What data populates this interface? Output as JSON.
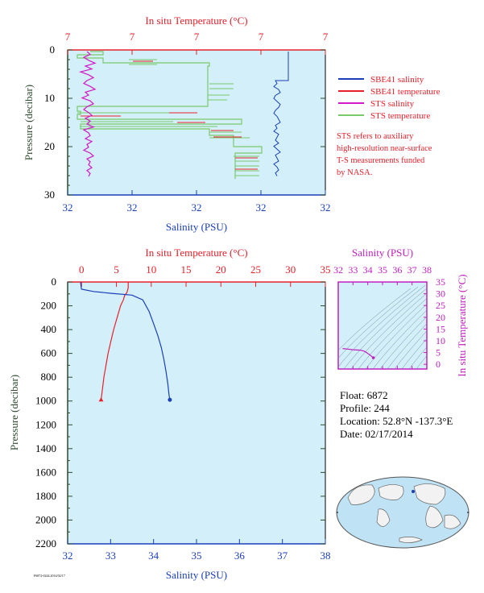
{
  "colors": {
    "plot_bg": "#d3effa",
    "temperature": "#e8202a",
    "salinity": "#1b3fb8",
    "sts_salinity": "#d417c8",
    "sts_temperature": "#7ac96b",
    "pressure_axis": "#2e4a2e",
    "ts_axis": "#c020c0"
  },
  "legend": {
    "items": [
      {
        "label": "SBE41 salinity",
        "color": "#1b3fb8"
      },
      {
        "label": "SBE41 temperature",
        "color": "#e8202a"
      },
      {
        "label": "STS salinity",
        "color": "#d417c8"
      },
      {
        "label": "STS temperature",
        "color": "#7ac96b"
      }
    ],
    "note": [
      "STS refers to auxiliary",
      "high-resolution near-surface",
      "T-S measurements funded",
      "by NASA."
    ]
  },
  "float_info": {
    "float": "Float:  6872",
    "profile": "Profile:  244",
    "location": "Location:  52.8°N  -137.3°E",
    "date": "Date:  02/17/2014"
  },
  "footer_text": "F6872-0244.2014/02/17",
  "chart_data": [
    {
      "type": "line",
      "title": "In situ Temperature (°C)",
      "xlabel": "Salinity (PSU)",
      "ylabel": "Pressure (decibar)",
      "top_ticks": [
        "7",
        "7",
        "7",
        "7",
        "7"
      ],
      "bottom_ticks": [
        "32",
        "32",
        "32",
        "32",
        "32"
      ],
      "y_ticks": [
        "0",
        "10",
        "20",
        "30"
      ],
      "ylim": [
        0,
        30
      ],
      "series": [
        {
          "name": "SBE41 salinity",
          "values": [
            [
              1,
              7.0
            ],
            [
              2,
              7.0
            ],
            [
              2,
              26.5
            ]
          ]
        },
        {
          "name": "SBE41 temperature",
          "values": [
            [
              1.0,
              7.4
            ],
            [
              2.5,
              7.4
            ],
            [
              2.5,
              20.5
            ],
            [
              3.0,
              20.5
            ],
            [
              3.0,
              26.8
            ]
          ]
        },
        {
          "name": "STS salinity",
          "values": [
            [
              0.5,
              1
            ],
            [
              0.6,
              8
            ],
            [
              0.4,
              15
            ],
            [
              0.5,
              22
            ],
            [
              0.5,
              27
            ]
          ]
        },
        {
          "name": "STS temperature",
          "values": [
            [
              0.3,
              1.5
            ],
            [
              2.2,
              3.3
            ],
            [
              2.2,
              12.8
            ],
            [
              0.3,
              14.0
            ],
            [
              2.5,
              19
            ],
            [
              3.0,
              27
            ]
          ]
        }
      ]
    },
    {
      "type": "line",
      "title": "In situ Temperature (°C)",
      "xlabel": "Salinity (PSU)",
      "ylabel": "Pressure (decibar)",
      "temperature_ticks": [
        0,
        5,
        10,
        15,
        20,
        25,
        30,
        35
      ],
      "salinity_ticks": [
        32,
        33,
        34,
        35,
        36,
        37,
        38
      ],
      "pressure_ticks": [
        0,
        200,
        400,
        600,
        800,
        1000,
        1200,
        1400,
        1600,
        1800,
        2000,
        2200
      ],
      "xlim_temperature": [
        -2,
        35
      ],
      "xlim_salinity": [
        32,
        38
      ],
      "ylim": [
        0,
        2200
      ],
      "series": [
        {
          "name": "SBE41 temperature",
          "axis": "temperature",
          "points": [
            [
              6.7,
              0
            ],
            [
              6.7,
              50
            ],
            [
              6.5,
              90
            ],
            [
              6.2,
              110
            ],
            [
              6.0,
              150
            ],
            [
              5.6,
              200
            ],
            [
              5.1,
              300
            ],
            [
              4.6,
              400
            ],
            [
              4.2,
              500
            ],
            [
              3.8,
              600
            ],
            [
              3.5,
              700
            ],
            [
              3.2,
              800
            ],
            [
              3.0,
              900
            ],
            [
              2.8,
              990
            ]
          ]
        },
        {
          "name": "SBE41 salinity",
          "axis": "salinity",
          "points": [
            [
              32.3,
              0
            ],
            [
              32.32,
              60
            ],
            [
              32.6,
              80
            ],
            [
              33.0,
              95
            ],
            [
              33.5,
              110
            ],
            [
              33.75,
              150
            ],
            [
              33.9,
              250
            ],
            [
              34.0,
              350
            ],
            [
              34.1,
              450
            ],
            [
              34.18,
              550
            ],
            [
              34.24,
              650
            ],
            [
              34.29,
              750
            ],
            [
              34.33,
              850
            ],
            [
              34.36,
              950
            ],
            [
              34.38,
              990
            ]
          ]
        }
      ]
    },
    {
      "type": "scatter",
      "title": "Salinity (PSU)",
      "ylabel": "In situ Temperature (°C)",
      "x_ticks": [
        32,
        33,
        34,
        35,
        36,
        37,
        38
      ],
      "y_ticks": [
        0,
        5,
        10,
        15,
        20,
        25,
        30,
        35
      ],
      "xlim": [
        32,
        38
      ],
      "ylim": [
        -2,
        35
      ],
      "series": [
        {
          "name": "T-S profile",
          "points": [
            [
              32.3,
              6.7
            ],
            [
              32.6,
              6.5
            ],
            [
              33.0,
              6.2
            ],
            [
              33.5,
              6.0
            ],
            [
              33.75,
              5.6
            ],
            [
              33.9,
              5.1
            ],
            [
              34.0,
              4.6
            ],
            [
              34.1,
              4.2
            ],
            [
              34.18,
              3.8
            ],
            [
              34.24,
              3.5
            ],
            [
              34.29,
              3.2
            ],
            [
              34.33,
              3.0
            ],
            [
              34.38,
              2.8
            ]
          ]
        }
      ]
    }
  ]
}
